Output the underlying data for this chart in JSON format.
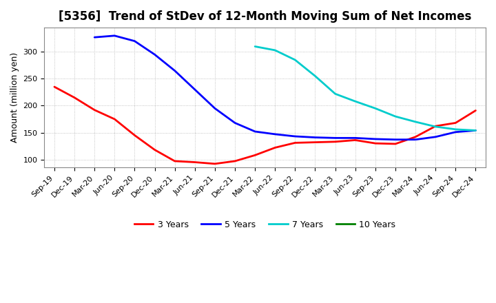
{
  "title": "[5356]  Trend of StDev of 12-Month Moving Sum of Net Incomes",
  "ylabel": "Amount (million yen)",
  "background_color": "#ffffff",
  "grid_color": "#aaaaaa",
  "ylim": [
    85,
    345
  ],
  "yticks": [
    100,
    150,
    200,
    250,
    300
  ],
  "x_labels": [
    "Sep-19",
    "Dec-19",
    "Mar-20",
    "Jun-20",
    "Sep-20",
    "Dec-20",
    "Mar-21",
    "Jun-21",
    "Sep-21",
    "Dec-21",
    "Mar-22",
    "Jun-22",
    "Sep-22",
    "Dec-22",
    "Mar-23",
    "Jun-23",
    "Sep-23",
    "Dec-23",
    "Mar-24",
    "Jun-24",
    "Sep-24",
    "Dec-24"
  ],
  "series": {
    "3 Years": {
      "color": "#ff0000",
      "data_y": [
        235,
        215,
        192,
        175,
        145,
        118,
        97,
        95,
        92,
        97,
        108,
        122,
        131,
        132,
        133,
        136,
        130,
        129,
        142,
        162,
        168,
        191
      ]
    },
    "5 Years": {
      "color": "#0000ff",
      "data_y": [
        null,
        null,
        327,
        330,
        320,
        295,
        265,
        230,
        195,
        168,
        152,
        147,
        143,
        141,
        140,
        140,
        138,
        137,
        137,
        142,
        151,
        154
      ]
    },
    "7 Years": {
      "color": "#00cccc",
      "data_y": [
        null,
        null,
        null,
        null,
        null,
        null,
        null,
        null,
        null,
        null,
        310,
        303,
        285,
        255,
        222,
        208,
        195,
        180,
        170,
        161,
        156,
        154
      ]
    },
    "10 Years": {
      "color": "#008000",
      "data_y": []
    }
  },
  "legend_labels": [
    "3 Years",
    "5 Years",
    "7 Years",
    "10 Years"
  ],
  "legend_colors": [
    "#ff0000",
    "#0000ff",
    "#00cccc",
    "#008000"
  ],
  "linewidth": 2.0,
  "title_fontsize": 12,
  "axis_label_fontsize": 9,
  "tick_fontsize": 8
}
